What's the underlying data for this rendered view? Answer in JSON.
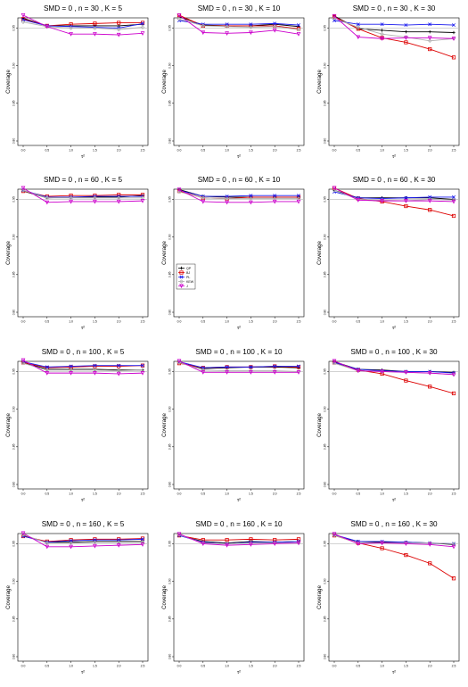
{
  "colors": {
    "QP": "#000000",
    "BJ": "#dd0000",
    "PL": "#1a1aee",
    "KEW": "#b0b0b0",
    "J": "#cc00cc",
    "reference_line": "#b8b8b8"
  },
  "legend": {
    "panel_index": 4,
    "entries": [
      {
        "key": "QP",
        "label": "QP"
      },
      {
        "key": "BJ",
        "label": "BJ"
      },
      {
        "key": "PL",
        "label": "PL"
      },
      {
        "key": "KEW",
        "label": "KEW"
      },
      {
        "key": "J",
        "label": "J"
      }
    ]
  },
  "chart_data": [
    {
      "type": "line",
      "title": "SMD = 0 , n = 30 , K = 5",
      "xlabel": "τ²",
      "ylabel": "Coverage",
      "x": [
        0,
        0.5,
        1,
        1.5,
        2,
        2.5
      ],
      "xticks": [
        "0.0",
        "0.5",
        "1.0",
        "1.5",
        "2.0",
        "2.5"
      ],
      "ylim": [
        0.8,
        0.96
      ],
      "yticks": [
        "0.80",
        "0.85",
        "0.90",
        "0.95"
      ],
      "reference": 0.95,
      "series": [
        {
          "key": "QP",
          "values": [
            0.963,
            0.953,
            0.953,
            0.953,
            0.953,
            0.955
          ]
        },
        {
          "key": "BJ",
          "values": [
            0.962,
            0.953,
            0.955,
            0.956,
            0.957,
            0.957
          ]
        },
        {
          "key": "PL",
          "values": [
            0.961,
            0.953,
            0.952,
            0.951,
            0.95,
            0.956
          ]
        },
        {
          "key": "KEW",
          "values": [
            0.958,
            0.952,
            0.95,
            0.95,
            0.948,
            0.951
          ]
        },
        {
          "key": "J",
          "values": [
            0.967,
            0.952,
            0.942,
            0.942,
            0.941,
            0.943
          ]
        }
      ]
    },
    {
      "type": "line",
      "title": "SMD = 0 , n = 30 , K = 10",
      "xlabel": "τ²",
      "ylabel": "Coverage",
      "x": [
        0,
        0.5,
        1,
        1.5,
        2,
        2.5
      ],
      "xticks": [
        "0.0",
        "0.5",
        "1.0",
        "1.5",
        "2.0",
        "2.5"
      ],
      "ylim": [
        0.8,
        0.96
      ],
      "yticks": [
        "0.80",
        "0.85",
        "0.90",
        "0.95"
      ],
      "reference": 0.95,
      "series": [
        {
          "key": "QP",
          "values": [
            0.965,
            0.954,
            0.953,
            0.953,
            0.955,
            0.952
          ]
        },
        {
          "key": "BJ",
          "values": [
            0.967,
            0.953,
            0.953,
            0.953,
            0.953,
            0.949
          ]
        },
        {
          "key": "PL",
          "values": [
            0.96,
            0.955,
            0.955,
            0.955,
            0.956,
            0.954
          ]
        },
        {
          "key": "KEW",
          "values": [
            0.962,
            0.953,
            0.952,
            0.951,
            0.952,
            0.948
          ]
        },
        {
          "key": "J",
          "values": [
            0.967,
            0.944,
            0.943,
            0.944,
            0.947,
            0.942
          ]
        }
      ]
    },
    {
      "type": "line",
      "title": "SMD = 0 , n = 30 , K = 30",
      "xlabel": "τ²",
      "ylabel": "Coverage",
      "x": [
        0,
        0.5,
        1,
        1.5,
        2,
        2.5
      ],
      "xticks": [
        "0.0",
        "0.5",
        "1.0",
        "1.5",
        "2.0",
        "2.5"
      ],
      "ylim": [
        0.8,
        0.96
      ],
      "yticks": [
        "0.80",
        "0.85",
        "0.90",
        "0.95"
      ],
      "reference": 0.95,
      "series": [
        {
          "key": "QP",
          "values": [
            0.966,
            0.949,
            0.947,
            0.945,
            0.945,
            0.944
          ]
        },
        {
          "key": "BJ",
          "values": [
            0.965,
            0.949,
            0.937,
            0.931,
            0.922,
            0.911
          ]
        },
        {
          "key": "PL",
          "values": [
            0.96,
            0.955,
            0.955,
            0.954,
            0.955,
            0.954
          ]
        },
        {
          "key": "KEW",
          "values": [
            0.963,
            0.951,
            0.942,
            0.938,
            0.933,
            0.936
          ]
        },
        {
          "key": "J",
          "values": [
            0.966,
            0.938,
            0.936,
            0.937,
            0.937,
            0.936
          ]
        }
      ]
    },
    {
      "type": "line",
      "title": "SMD = 0 , n = 60 , K = 5",
      "xlabel": "τ²",
      "ylabel": "Coverage",
      "x": [
        0,
        0.5,
        1,
        1.5,
        2,
        2.5
      ],
      "xticks": [
        "0.0",
        "0.5",
        "1.0",
        "1.5",
        "2.0",
        "2.5"
      ],
      "ylim": [
        0.8,
        0.96
      ],
      "yticks": [
        "0.80",
        "0.85",
        "0.90",
        "0.95"
      ],
      "reference": 0.95,
      "series": [
        {
          "key": "QP",
          "values": [
            0.961,
            0.952,
            0.953,
            0.953,
            0.953,
            0.955
          ]
        },
        {
          "key": "BJ",
          "values": [
            0.961,
            0.954,
            0.955,
            0.955,
            0.956,
            0.956
          ]
        },
        {
          "key": "PL",
          "values": [
            0.962,
            0.953,
            0.953,
            0.954,
            0.954,
            0.954
          ]
        },
        {
          "key": "KEW",
          "values": [
            0.962,
            0.952,
            0.952,
            0.952,
            0.952,
            0.952
          ]
        },
        {
          "key": "J",
          "values": [
            0.965,
            0.946,
            0.947,
            0.947,
            0.947,
            0.948
          ]
        }
      ]
    },
    {
      "type": "line",
      "title": "SMD = 0 , n = 60 , K = 10",
      "xlabel": "τ²",
      "ylabel": "Coverage",
      "x": [
        0,
        0.5,
        1,
        1.5,
        2,
        2.5
      ],
      "xticks": [
        "0.0",
        "0.5",
        "1.0",
        "1.5",
        "2.0",
        "2.5"
      ],
      "ylim": [
        0.8,
        0.96
      ],
      "yticks": [
        "0.80",
        "0.85",
        "0.90",
        "0.95"
      ],
      "reference": 0.95,
      "series": [
        {
          "key": "QP",
          "values": [
            0.963,
            0.954,
            0.953,
            0.953,
            0.953,
            0.953
          ]
        },
        {
          "key": "BJ",
          "values": [
            0.961,
            0.952,
            0.951,
            0.953,
            0.953,
            0.953
          ]
        },
        {
          "key": "PL",
          "values": [
            0.962,
            0.954,
            0.954,
            0.955,
            0.955,
            0.955
          ]
        },
        {
          "key": "KEW",
          "values": [
            0.96,
            0.952,
            0.951,
            0.951,
            0.951,
            0.951
          ]
        },
        {
          "key": "J",
          "values": [
            0.963,
            0.947,
            0.946,
            0.946,
            0.947,
            0.947
          ]
        }
      ]
    },
    {
      "type": "line",
      "title": "SMD = 0 , n = 60 , K = 30",
      "xlabel": "τ²",
      "ylabel": "Coverage",
      "x": [
        0,
        0.5,
        1,
        1.5,
        2,
        2.5
      ],
      "xticks": [
        "0.0",
        "0.5",
        "1.0",
        "1.5",
        "2.0",
        "2.5"
      ],
      "ylim": [
        0.8,
        0.96
      ],
      "yticks": [
        "0.80",
        "0.85",
        "0.90",
        "0.95"
      ],
      "reference": 0.95,
      "series": [
        {
          "key": "QP",
          "values": [
            0.962,
            0.952,
            0.952,
            0.952,
            0.952,
            0.95
          ]
        },
        {
          "key": "BJ",
          "values": [
            0.965,
            0.951,
            0.947,
            0.941,
            0.936,
            0.928
          ]
        },
        {
          "key": "PL",
          "values": [
            0.96,
            0.952,
            0.951,
            0.952,
            0.953,
            0.953
          ]
        },
        {
          "key": "KEW",
          "values": [
            0.962,
            0.95,
            0.949,
            0.948,
            0.95,
            0.949
          ]
        },
        {
          "key": "J",
          "values": [
            0.965,
            0.949,
            0.948,
            0.948,
            0.948,
            0.947
          ]
        }
      ]
    },
    {
      "type": "line",
      "title": "SMD = 0 , n = 100 , K = 5",
      "xlabel": "τ²",
      "ylabel": "Coverage",
      "x": [
        0,
        0.5,
        1,
        1.5,
        2,
        2.5
      ],
      "xticks": [
        "0.0",
        "0.5",
        "1.0",
        "1.5",
        "2.0",
        "2.5"
      ],
      "ylim": [
        0.8,
        0.96
      ],
      "yticks": [
        "0.80",
        "0.85",
        "0.90",
        "0.95"
      ],
      "reference": 0.95,
      "series": [
        {
          "key": "QP",
          "values": [
            0.962,
            0.953,
            0.953,
            0.953,
            0.952,
            0.952
          ]
        },
        {
          "key": "BJ",
          "values": [
            0.962,
            0.955,
            0.956,
            0.957,
            0.957,
            0.958
          ]
        },
        {
          "key": "PL",
          "values": [
            0.963,
            0.956,
            0.957,
            0.958,
            0.958,
            0.958
          ]
        },
        {
          "key": "KEW",
          "values": [
            0.961,
            0.952,
            0.952,
            0.952,
            0.951,
            0.952
          ]
        },
        {
          "key": "J",
          "values": [
            0.965,
            0.948,
            0.948,
            0.948,
            0.947,
            0.948
          ]
        }
      ]
    },
    {
      "type": "line",
      "title": "SMD = 0 , n = 100 , K = 10",
      "xlabel": "τ²",
      "ylabel": "Coverage",
      "x": [
        0,
        0.5,
        1,
        1.5,
        2,
        2.5
      ],
      "xticks": [
        "0.0",
        "0.5",
        "1.0",
        "1.5",
        "2.0",
        "2.5"
      ],
      "ylim": [
        0.8,
        0.96
      ],
      "yticks": [
        "0.80",
        "0.85",
        "0.90",
        "0.95"
      ],
      "reference": 0.95,
      "series": [
        {
          "key": "QP",
          "values": [
            0.962,
            0.954,
            0.955,
            0.956,
            0.956,
            0.955
          ]
        },
        {
          "key": "BJ",
          "values": [
            0.961,
            0.955,
            0.956,
            0.956,
            0.957,
            0.956
          ]
        },
        {
          "key": "PL",
          "values": [
            0.963,
            0.955,
            0.956,
            0.956,
            0.957,
            0.957
          ]
        },
        {
          "key": "KEW",
          "values": [
            0.962,
            0.952,
            0.951,
            0.951,
            0.951,
            0.95
          ]
        },
        {
          "key": "J",
          "values": [
            0.964,
            0.949,
            0.949,
            0.949,
            0.949,
            0.949
          ]
        }
      ]
    },
    {
      "type": "line",
      "title": "SMD = 0 , n = 100 , K = 30",
      "xlabel": "τ²",
      "ylabel": "Coverage",
      "x": [
        0,
        0.5,
        1,
        1.5,
        2,
        2.5
      ],
      "xticks": [
        "0.0",
        "0.5",
        "1.0",
        "1.5",
        "2.0",
        "2.5"
      ],
      "ylim": [
        0.8,
        0.96
      ],
      "yticks": [
        "0.80",
        "0.85",
        "0.90",
        "0.95"
      ],
      "reference": 0.95,
      "series": [
        {
          "key": "QP",
          "values": [
            0.963,
            0.953,
            0.952,
            0.95,
            0.95,
            0.949
          ]
        },
        {
          "key": "BJ",
          "values": [
            0.962,
            0.952,
            0.947,
            0.938,
            0.93,
            0.921
          ]
        },
        {
          "key": "PL",
          "values": [
            0.962,
            0.953,
            0.951,
            0.95,
            0.95,
            0.948
          ]
        },
        {
          "key": "KEW",
          "values": [
            0.961,
            0.951,
            0.95,
            0.949,
            0.948,
            0.946
          ]
        },
        {
          "key": "J",
          "values": [
            0.964,
            0.951,
            0.95,
            0.949,
            0.948,
            0.946
          ]
        }
      ]
    },
    {
      "type": "line",
      "title": "SMD = 0 , n = 160 , K = 5",
      "xlabel": "τ²",
      "ylabel": "Coverage",
      "x": [
        0,
        0.5,
        1,
        1.5,
        2,
        2.5
      ],
      "xticks": [
        "0.0",
        "0.5",
        "1.0",
        "1.5",
        "2.0",
        "2.5"
      ],
      "ylim": [
        0.8,
        0.96
      ],
      "yticks": [
        "0.80",
        "0.85",
        "0.90",
        "0.95"
      ],
      "reference": 0.95,
      "series": [
        {
          "key": "QP",
          "values": [
            0.961,
            0.952,
            0.952,
            0.953,
            0.953,
            0.953
          ]
        },
        {
          "key": "BJ",
          "values": [
            0.96,
            0.953,
            0.955,
            0.956,
            0.956,
            0.957
          ]
        },
        {
          "key": "PL",
          "values": [
            0.96,
            0.952,
            0.954,
            0.955,
            0.955,
            0.956
          ]
        },
        {
          "key": "KEW",
          "values": [
            0.962,
            0.951,
            0.951,
            0.952,
            0.952,
            0.952
          ]
        },
        {
          "key": "J",
          "values": [
            0.964,
            0.946,
            0.946,
            0.947,
            0.948,
            0.949
          ]
        }
      ]
    },
    {
      "type": "line",
      "title": "SMD = 0 , n = 160 , K = 10",
      "xlabel": "τ²",
      "ylabel": "Coverage",
      "x": [
        0,
        0.5,
        1,
        1.5,
        2,
        2.5
      ],
      "xticks": [
        "0.0",
        "0.5",
        "1.0",
        "1.5",
        "2.0",
        "2.5"
      ],
      "ylim": [
        0.8,
        0.96
      ],
      "yticks": [
        "0.80",
        "0.85",
        "0.90",
        "0.95"
      ],
      "reference": 0.95,
      "series": [
        {
          "key": "QP",
          "values": [
            0.961,
            0.953,
            0.951,
            0.953,
            0.952,
            0.953
          ]
        },
        {
          "key": "BJ",
          "values": [
            0.961,
            0.955,
            0.955,
            0.956,
            0.955,
            0.956
          ]
        },
        {
          "key": "PL",
          "values": [
            0.961,
            0.952,
            0.95,
            0.952,
            0.952,
            0.953
          ]
        },
        {
          "key": "KEW",
          "values": [
            0.962,
            0.951,
            0.95,
            0.951,
            0.951,
            0.951
          ]
        },
        {
          "key": "J",
          "values": [
            0.963,
            0.95,
            0.948,
            0.949,
            0.95,
            0.951
          ]
        }
      ]
    },
    {
      "type": "line",
      "title": "SMD = 0 , n = 160 , K = 30",
      "xlabel": "τ²",
      "ylabel": "Coverage",
      "x": [
        0,
        0.5,
        1,
        1.5,
        2,
        2.5
      ],
      "xticks": [
        "0.0",
        "0.5",
        "1.0",
        "1.5",
        "2.0",
        "2.5"
      ],
      "ylim": [
        0.8,
        0.96
      ],
      "yticks": [
        "0.80",
        "0.85",
        "0.90",
        "0.95"
      ],
      "reference": 0.95,
      "series": [
        {
          "key": "QP",
          "values": [
            0.961,
            0.953,
            0.952,
            0.952,
            0.951,
            0.949
          ]
        },
        {
          "key": "BJ",
          "values": [
            0.961,
            0.951,
            0.944,
            0.935,
            0.924,
            0.904
          ]
        },
        {
          "key": "PL",
          "values": [
            0.962,
            0.953,
            0.953,
            0.952,
            0.951,
            0.95
          ]
        },
        {
          "key": "KEW",
          "values": [
            0.961,
            0.951,
            0.951,
            0.951,
            0.951,
            0.95
          ]
        },
        {
          "key": "J",
          "values": [
            0.963,
            0.95,
            0.951,
            0.95,
            0.949,
            0.946
          ]
        }
      ]
    }
  ]
}
